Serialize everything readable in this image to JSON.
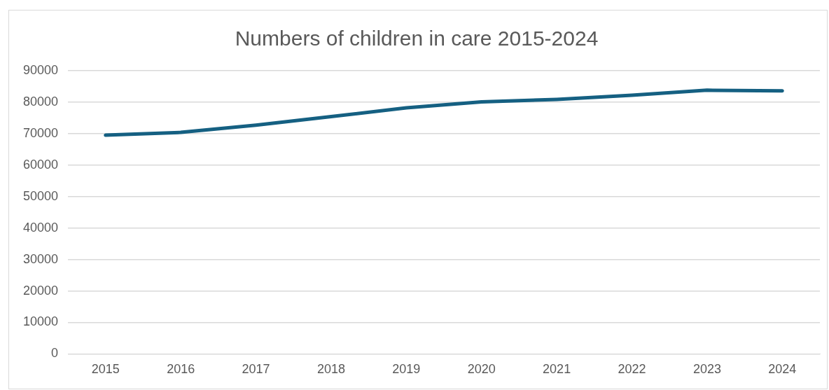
{
  "chart_data": {
    "type": "line",
    "title": "Numbers of children in care 2015-2024",
    "categories": [
      "2015",
      "2016",
      "2017",
      "2018",
      "2019",
      "2020",
      "2021",
      "2022",
      "2023",
      "2024"
    ],
    "series": [
      {
        "color": "#156082",
        "values": [
          69500,
          70400,
          72700,
          75400,
          78200,
          80100,
          80900,
          82200,
          83800,
          83600
        ]
      }
    ],
    "ylim": [
      0,
      90000
    ],
    "yticks": [
      0,
      10000,
      20000,
      30000,
      40000,
      50000,
      60000,
      70000,
      80000,
      90000
    ],
    "grid": "y",
    "legend": false,
    "marker": "none",
    "line_style": "solid"
  }
}
